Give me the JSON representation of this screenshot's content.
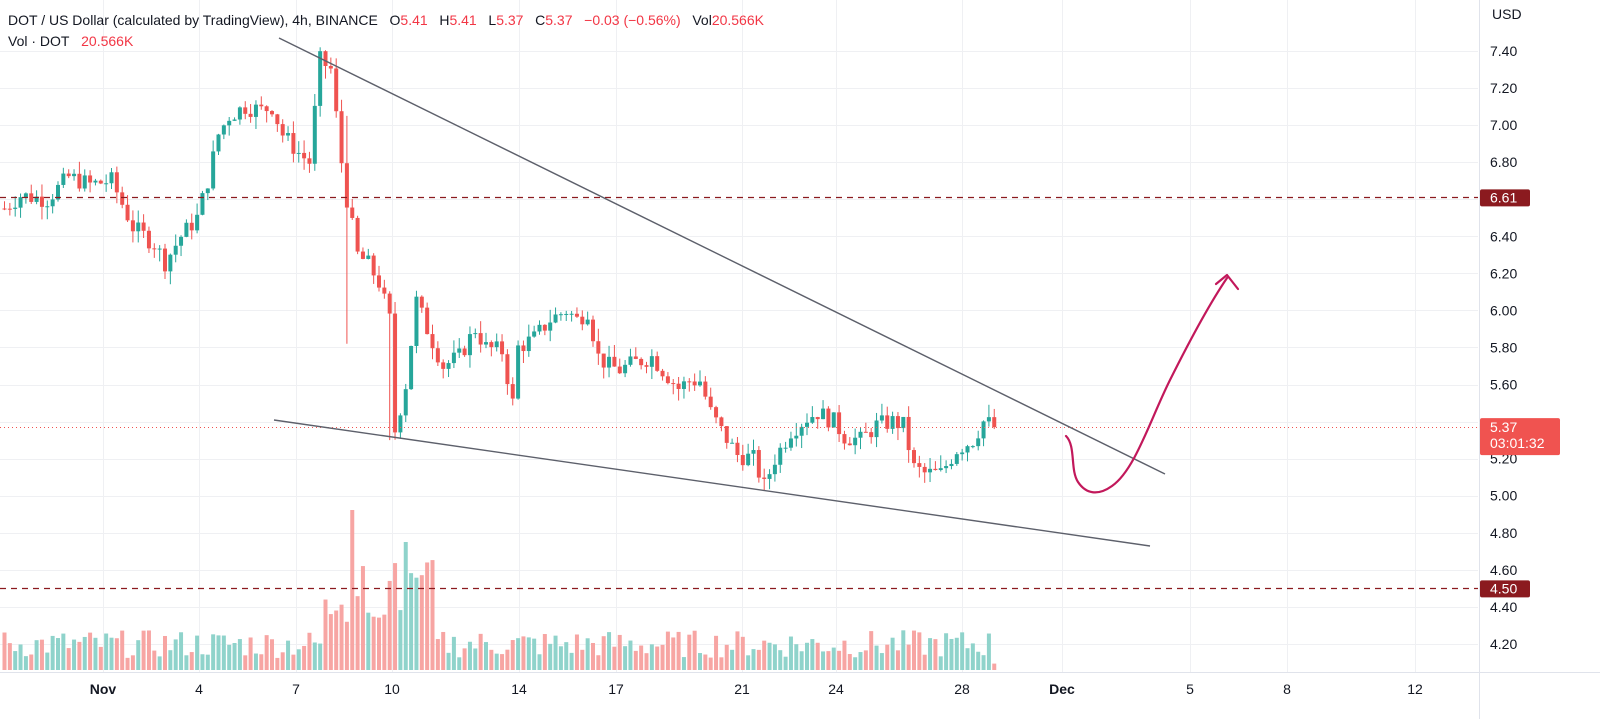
{
  "legend": {
    "symbol": "DOT / US Dollar (calculated by TradingView), 4h, BINANCE",
    "o_label": "O",
    "o_value": "5.41",
    "h_label": "H",
    "h_value": "5.41",
    "l_label": "L",
    "l_value": "5.37",
    "c_label": "C",
    "c_value": "5.37",
    "change": "−0.03 (−0.56%)",
    "vol_label": "Vol",
    "vol_value": "20.566K",
    "vol_series_label": "Vol · DOT",
    "vol_series_value": "20.566K"
  },
  "colors": {
    "up": "#26a69a",
    "down": "#ef5350",
    "up_vol": "#8fd3cb",
    "down_vol": "#f7a5a3",
    "level_line": "#8b1a1f",
    "price_tag": "#f05350",
    "trendline": "#5d606b",
    "arrow": "#c2185b",
    "grid": "#eff0f3"
  },
  "price_scale": {
    "currency": "USD",
    "ticks": [
      "7.40",
      "7.20",
      "7.00",
      "6.80",
      "6.40",
      "6.20",
      "6.00",
      "5.80",
      "5.60",
      "5.20",
      "5.00",
      "4.80",
      "4.60",
      "4.40",
      "4.20"
    ],
    "level_high": "6.61",
    "level_low": "4.50",
    "last_price": "5.37",
    "countdown": "03:01:32"
  },
  "time_scale": {
    "ticks": [
      {
        "label": "Nov",
        "bold": true
      },
      {
        "label": "4",
        "bold": false
      },
      {
        "label": "7",
        "bold": false
      },
      {
        "label": "10",
        "bold": false
      },
      {
        "label": "14",
        "bold": false
      },
      {
        "label": "17",
        "bold": false
      },
      {
        "label": "21",
        "bold": false
      },
      {
        "label": "24",
        "bold": false
      },
      {
        "label": "28",
        "bold": false
      },
      {
        "label": "Dec",
        "bold": true
      },
      {
        "label": "5",
        "bold": false
      },
      {
        "label": "8",
        "bold": false
      },
      {
        "label": "12",
        "bold": false
      }
    ]
  },
  "chart_data": {
    "type": "candlestick",
    "title": "DOT / US Dollar (calculated by TradingView), 4h, BINANCE",
    "xlabel": "",
    "ylabel": "USD",
    "ylim": [
      4.1,
      7.55
    ],
    "x_ticks": [
      "Nov",
      "4",
      "7",
      "10",
      "14",
      "17",
      "21",
      "24",
      "28",
      "Dec",
      "5",
      "8",
      "12"
    ],
    "y_ticks": [
      7.4,
      7.2,
      7.0,
      6.8,
      6.6,
      6.4,
      6.2,
      6.0,
      5.8,
      5.6,
      5.4,
      5.2,
      5.0,
      4.8,
      4.6,
      4.4,
      4.2
    ],
    "horizontal_levels": [
      6.61,
      4.5
    ],
    "last_price": 5.37,
    "approx_close_path": [
      {
        "date": "Oct 29",
        "close": 6.55
      },
      {
        "date": "Oct 30",
        "close": 6.68
      },
      {
        "date": "Oct 31",
        "close": 6.72
      },
      {
        "date": "Nov 1",
        "close": 6.65
      },
      {
        "date": "Nov 2",
        "close": 6.4
      },
      {
        "date": "Nov 3",
        "close": 6.28
      },
      {
        "date": "Nov 4",
        "close": 6.62
      },
      {
        "date": "Nov 5",
        "close": 7.05
      },
      {
        "date": "Nov 6",
        "close": 7.1
      },
      {
        "date": "Nov 7",
        "close": 6.8
      },
      {
        "date": "Nov 8",
        "close": 7.35
      },
      {
        "date": "Nov 9",
        "close": 6.1
      },
      {
        "date": "Nov 10",
        "close": 5.5
      },
      {
        "date": "Nov 11",
        "close": 5.9
      },
      {
        "date": "Nov 12",
        "close": 5.75
      },
      {
        "date": "Nov 13",
        "close": 5.8
      },
      {
        "date": "Nov 14",
        "close": 5.65
      },
      {
        "date": "Nov 15",
        "close": 5.85
      },
      {
        "date": "Nov 16",
        "close": 5.95
      },
      {
        "date": "Nov 17",
        "close": 5.7
      },
      {
        "date": "Nov 18",
        "close": 5.72
      },
      {
        "date": "Nov 19",
        "close": 5.73
      },
      {
        "date": "Nov 20",
        "close": 5.6
      },
      {
        "date": "Nov 21",
        "close": 5.4
      },
      {
        "date": "Nov 22",
        "close": 5.05
      },
      {
        "date": "Nov 23",
        "close": 5.35
      },
      {
        "date": "Nov 24",
        "close": 5.4
      },
      {
        "date": "Nov 25",
        "close": 5.32
      },
      {
        "date": "Nov 26",
        "close": 5.3
      },
      {
        "date": "Nov 27",
        "close": 5.38
      },
      {
        "date": "Nov 28",
        "close": 5.12
      },
      {
        "date": "Nov 29",
        "close": 5.2
      },
      {
        "date": "Nov 30",
        "close": 5.37
      }
    ],
    "path_keypoints": [
      [
        0,
        6.55
      ],
      [
        3,
        6.62
      ],
      [
        8,
        6.6
      ],
      [
        12,
        6.72
      ],
      [
        16,
        6.68
      ],
      [
        20,
        6.7
      ],
      [
        24,
        6.45
      ],
      [
        28,
        6.36
      ],
      [
        30,
        6.26
      ],
      [
        33,
        6.4
      ],
      [
        36,
        6.5
      ],
      [
        38,
        6.7
      ],
      [
        40,
        6.95
      ],
      [
        42,
        7.05
      ],
      [
        45,
        7.1
      ],
      [
        48,
        7.08
      ],
      [
        50,
        7.1
      ],
      [
        52,
        6.95
      ],
      [
        55,
        6.85
      ],
      [
        57,
        6.8
      ],
      [
        59,
        7.35
      ],
      [
        61,
        7.3
      ],
      [
        63,
        6.8
      ],
      [
        64,
        6.6
      ],
      [
        66,
        6.3
      ],
      [
        68,
        6.25
      ],
      [
        70,
        6.15
      ],
      [
        72,
        5.95
      ],
      [
        73,
        5.35
      ],
      [
        75,
        5.6
      ],
      [
        77,
        6.05
      ],
      [
        79,
        5.9
      ],
      [
        82,
        5.7
      ],
      [
        85,
        5.75
      ],
      [
        88,
        5.9
      ],
      [
        90,
        5.8
      ],
      [
        93,
        5.78
      ],
      [
        95,
        5.5
      ],
      [
        96,
        5.8
      ],
      [
        99,
        5.85
      ],
      [
        102,
        5.95
      ],
      [
        105,
        6.0
      ],
      [
        107,
        5.95
      ],
      [
        109,
        6.0
      ],
      [
        111,
        5.75
      ],
      [
        113,
        5.7
      ],
      [
        115,
        5.68
      ],
      [
        118,
        5.72
      ],
      [
        121,
        5.75
      ],
      [
        123,
        5.68
      ],
      [
        126,
        5.58
      ],
      [
        128,
        5.62
      ],
      [
        130,
        5.62
      ],
      [
        132,
        5.45
      ],
      [
        134,
        5.35
      ],
      [
        137,
        5.22
      ],
      [
        140,
        5.2
      ],
      [
        142,
        5.05
      ],
      [
        144,
        5.2
      ],
      [
        147,
        5.35
      ],
      [
        150,
        5.42
      ],
      [
        152,
        5.45
      ],
      [
        155,
        5.4
      ],
      [
        157,
        5.32
      ],
      [
        160,
        5.3
      ],
      [
        163,
        5.38
      ],
      [
        166,
        5.4
      ],
      [
        168,
        5.38
      ],
      [
        170,
        5.15
      ],
      [
        172,
        5.12
      ],
      [
        175,
        5.12
      ],
      [
        178,
        5.25
      ],
      [
        181,
        5.3
      ],
      [
        183,
        5.4
      ],
      [
        185,
        5.38
      ]
    ],
    "trendlines": [
      {
        "name": "upper",
        "from": {
          "x": "Nov 6",
          "y": 7.45
        },
        "to": {
          "x": "Dec 4",
          "y": 5.12
        }
      },
      {
        "name": "lower",
        "from": {
          "x": "Nov 6",
          "y": 5.4
        },
        "to": {
          "x": "Dec 3",
          "y": 4.74
        }
      }
    ],
    "annotation": "hand-drawn projection: dip to ~5.02 then rise to ~6.20 with arrowhead"
  }
}
